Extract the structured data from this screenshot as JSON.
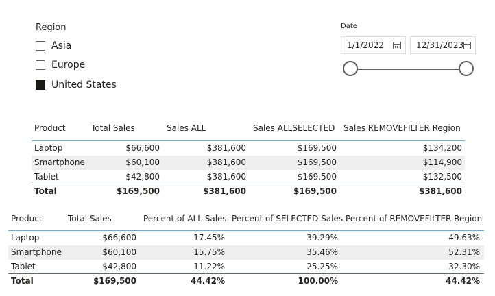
{
  "region_slicer": {
    "title": "Region",
    "items": [
      {
        "label": "Asia",
        "checked": false
      },
      {
        "label": "Europe",
        "checked": false
      },
      {
        "label": "United States",
        "checked": true
      }
    ]
  },
  "date_slicer": {
    "title": "Date",
    "start": "1/1/2022",
    "end": "12/31/2023"
  },
  "table1": {
    "headers": [
      "Product",
      "Total Sales",
      "Sales ALL",
      "Sales ALLSELECTED",
      "Sales REMOVEFILTER Region"
    ],
    "rows": [
      [
        "Laptop",
        "$66,600",
        "$381,600",
        "$169,500",
        "$134,200"
      ],
      [
        "Smartphone",
        "$60,100",
        "$381,600",
        "$169,500",
        "$114,900"
      ],
      [
        "Tablet",
        "$42,800",
        "$381,600",
        "$169,500",
        "$132,500"
      ]
    ],
    "total": [
      "Total",
      "$169,500",
      "$381,600",
      "$169,500",
      "$381,600"
    ]
  },
  "table2": {
    "headers": [
      "Product",
      "Total Sales",
      "Percent of ALL Sales",
      "Percent of SELECTED Sales",
      "Percent of REMOVEFILTER Region"
    ],
    "rows": [
      [
        "Laptop",
        "$66,600",
        "17.45%",
        "39.29%",
        "49.63%"
      ],
      [
        "Smartphone",
        "$60,100",
        "15.75%",
        "35.46%",
        "52.31%"
      ],
      [
        "Tablet",
        "$42,800",
        "11.22%",
        "25.25%",
        "32.30%"
      ]
    ],
    "total": [
      "Total",
      "$169,500",
      "44.42%",
      "100.00%",
      "44.42%"
    ]
  }
}
